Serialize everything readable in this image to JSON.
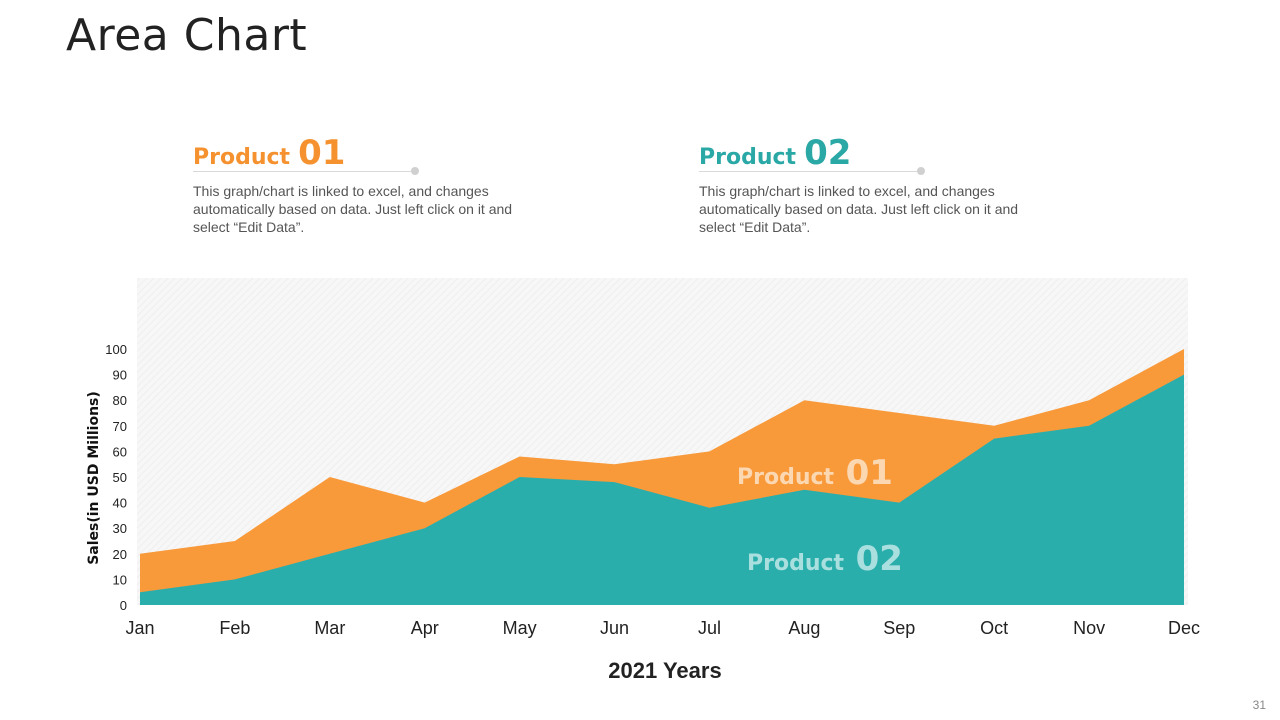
{
  "slide": {
    "title": "Area Chart",
    "page_number": "31"
  },
  "legend_cards": [
    {
      "word": "Product",
      "number": "01",
      "color": "#f5922f",
      "text": "This graph/chart is linked to excel, and changes automatically based on data. Just left click on it and select “Edit Data”."
    },
    {
      "word": "Product",
      "number": "02",
      "color": "#2aa8a6",
      "text": "This graph/chart is linked to excel, and changes automatically based on data. Just left click on it and select “Edit Data”."
    }
  ],
  "chart_data": {
    "type": "area",
    "categories": [
      "Jan",
      "Feb",
      "Mar",
      "Apr",
      "May",
      "Jun",
      "Jul",
      "Aug",
      "Sep",
      "Oct",
      "Nov",
      "Dec"
    ],
    "series": [
      {
        "name": "Product 01",
        "color": "#f8993a",
        "values": [
          20,
          25,
          50,
          40,
          58,
          55,
          60,
          80,
          75,
          70,
          80,
          100
        ]
      },
      {
        "name": "Product 02",
        "color": "#2aaeab",
        "values": [
          5,
          10,
          20,
          30,
          50,
          48,
          38,
          45,
          40,
          65,
          70,
          90
        ]
      }
    ],
    "in_chart_labels": [
      {
        "word": "Product",
        "number": "01"
      },
      {
        "word": "Product",
        "number": "02"
      }
    ],
    "xlabel": "2021 Years",
    "ylabel": "Sales(in USD Millions)",
    "ylim": [
      0,
      100
    ],
    "yticks": [
      0,
      10,
      20,
      30,
      40,
      50,
      60,
      70,
      80,
      90,
      100
    ],
    "grid": false,
    "background": "hatched-light-gray"
  }
}
